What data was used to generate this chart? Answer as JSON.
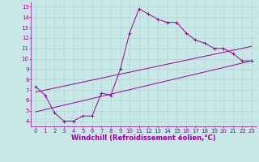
{
  "bg_color": "#c8e8e8",
  "line_color": "#990099",
  "grid_color": "#b0d4d4",
  "xlim": [
    -0.5,
    23.5
  ],
  "ylim": [
    3.5,
    15.5
  ],
  "xticks": [
    0,
    1,
    2,
    3,
    4,
    5,
    6,
    7,
    8,
    9,
    10,
    11,
    12,
    13,
    14,
    15,
    16,
    17,
    18,
    19,
    20,
    21,
    22,
    23
  ],
  "yticks": [
    4,
    5,
    6,
    7,
    8,
    9,
    10,
    11,
    12,
    13,
    14,
    15
  ],
  "xlabel": "Windchill (Refroidissement éolien,°C)",
  "curve1_x": [
    0,
    1,
    2,
    3,
    4,
    5,
    6,
    7,
    8,
    9,
    10,
    11,
    12,
    13,
    14,
    15,
    16,
    17,
    18,
    19,
    20,
    21,
    22,
    23
  ],
  "curve1_y": [
    7.3,
    6.5,
    4.8,
    4.0,
    4.0,
    4.5,
    4.5,
    6.7,
    6.5,
    9.0,
    12.5,
    14.8,
    14.3,
    13.8,
    13.5,
    13.5,
    12.5,
    11.8,
    11.5,
    11.0,
    11.0,
    10.5,
    9.8,
    9.8
  ],
  "curve2_x": [
    0,
    23
  ],
  "curve2_y": [
    6.8,
    11.2
  ],
  "curve3_x": [
    0,
    23
  ],
  "curve3_y": [
    4.9,
    9.8
  ],
  "tick_fontsize": 5,
  "label_fontsize": 6,
  "lw": 0.7,
  "marker_size": 2.5
}
